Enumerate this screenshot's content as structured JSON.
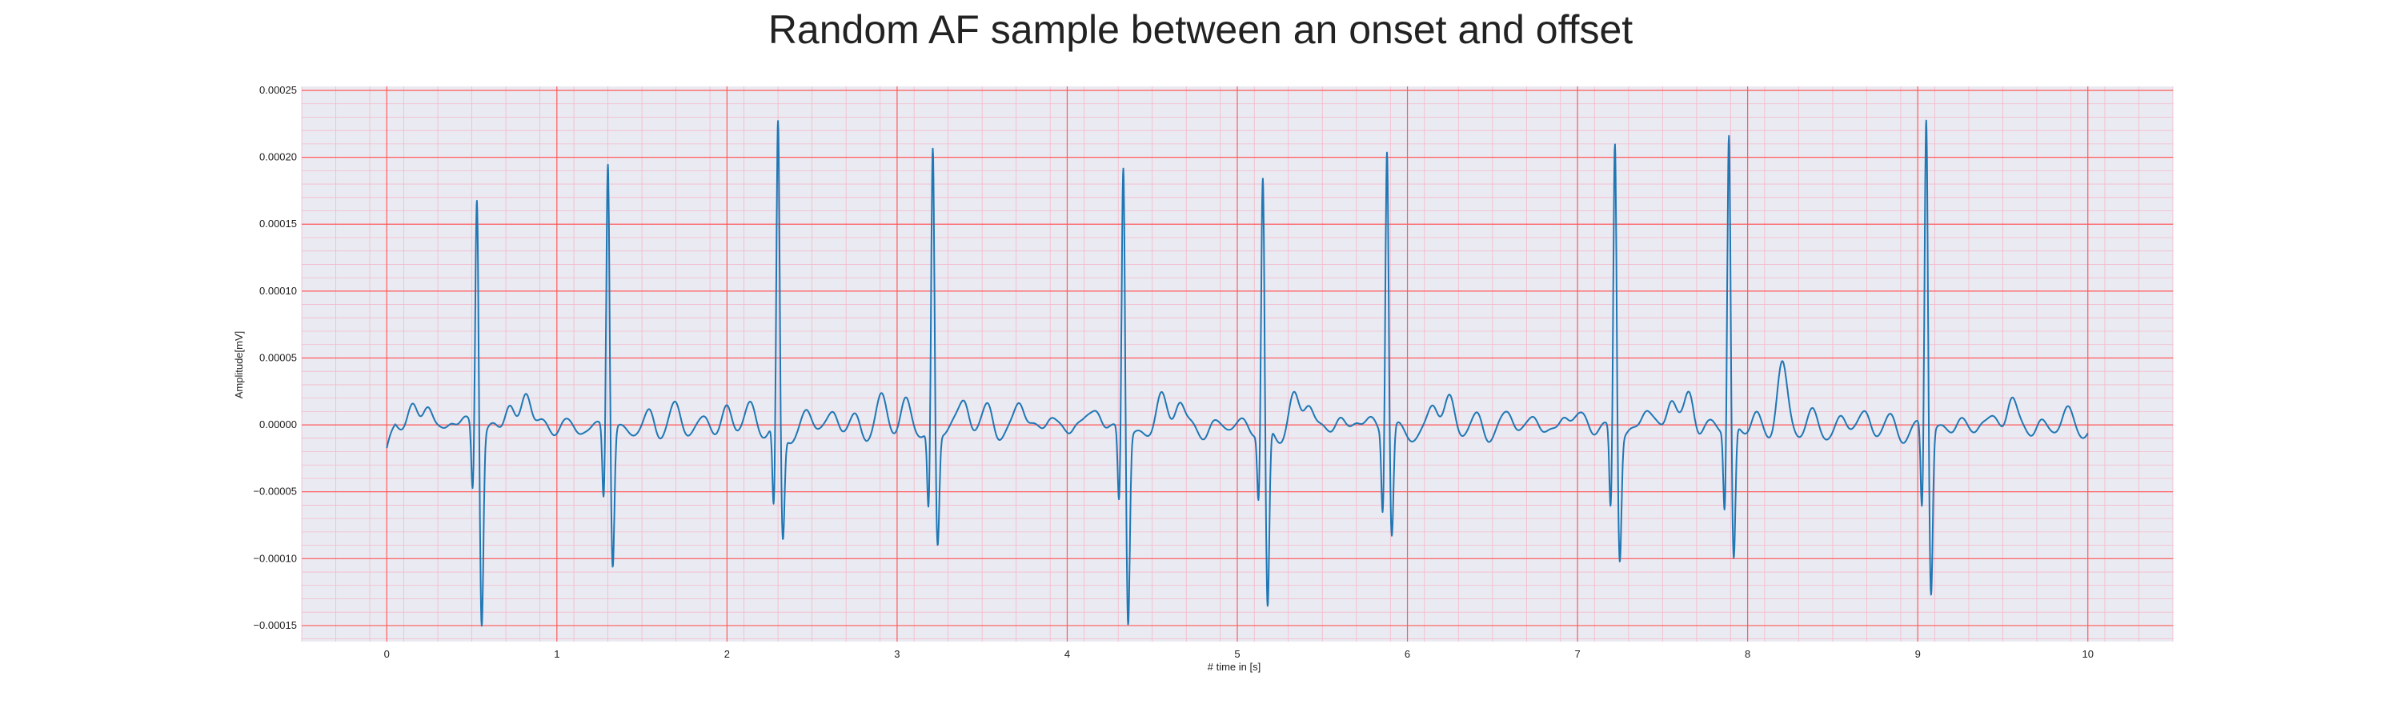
{
  "chart_data": {
    "type": "line",
    "title": "Random AF sample between an onset and offset",
    "xlabel": "# time in [s]",
    "ylabel": "Amplitude[mV]",
    "xlim": [
      -0.5,
      10.5
    ],
    "ylim": [
      -0.000162,
      0.000253
    ],
    "xticks": [
      0,
      1,
      2,
      3,
      4,
      5,
      6,
      7,
      8,
      9,
      10
    ],
    "xtick_labels": [
      "0",
      "1",
      "2",
      "3",
      "4",
      "5",
      "6",
      "7",
      "8",
      "9",
      "10"
    ],
    "yticks": [
      -0.00015,
      -0.0001,
      -5e-05,
      0,
      5e-05,
      0.0001,
      0.00015,
      0.0002,
      0.00025
    ],
    "ytick_labels": [
      "−0.00015",
      "−0.00010",
      "−0.00005",
      "0.00000",
      "0.00005",
      "0.00010",
      "0.00015",
      "0.00020",
      "0.00025"
    ],
    "grid": true,
    "minor_grid": true,
    "colors": {
      "background": "#eaeaf2",
      "major_grid": "#ff5a5a",
      "minor_grid": "#f3b9c9",
      "line": "#1f77b4"
    },
    "r_peaks": [
      {
        "t": 0.53,
        "peak": 0.000178,
        "trough": -0.000143
      },
      {
        "t": 1.3,
        "peak": 0.000201,
        "trough": -0.000104
      },
      {
        "t": 2.3,
        "peak": 0.000228,
        "trough": -8.2e-05
      },
      {
        "t": 3.21,
        "peak": 0.000213,
        "trough": -8.5e-05
      },
      {
        "t": 4.33,
        "peak": 0.000202,
        "trough": -0.000142
      },
      {
        "t": 5.15,
        "peak": 0.000189,
        "trough": -0.000137
      },
      {
        "t": 5.88,
        "peak": 0.000215,
        "trough": -8.1e-05
      },
      {
        "t": 7.22,
        "peak": 0.000221,
        "trough": -9.2e-05
      },
      {
        "t": 7.89,
        "peak": 0.000221,
        "trough": -0.000101
      },
      {
        "t": 9.05,
        "peak": 0.000234,
        "trough": -0.000124
      }
    ],
    "baseline_waves": [
      {
        "t": 0.15,
        "a": 1.6e-05
      },
      {
        "t": 0.24,
        "a": 2.1e-05
      },
      {
        "t": 0.38,
        "a": 1.3e-05
      },
      {
        "t": 0.72,
        "a": 2.4e-05
      },
      {
        "t": 0.82,
        "a": 2.9e-05
      },
      {
        "t": 1.03,
        "a": 6e-06
      },
      {
        "t": 1.16,
        "a": 8e-06
      },
      {
        "t": 1.55,
        "a": 1.6e-05
      },
      {
        "t": 1.7,
        "a": 1.2e-05
      },
      {
        "t": 1.88,
        "a": 9e-06
      },
      {
        "t": 2.0,
        "a": 1.9e-05
      },
      {
        "t": 2.14,
        "a": 1.3e-05
      },
      {
        "t": 2.47,
        "a": 1e-05
      },
      {
        "t": 2.63,
        "a": 1.3e-05
      },
      {
        "t": 2.76,
        "a": 1.1e-05
      },
      {
        "t": 2.91,
        "a": 1.8e-05
      },
      {
        "t": 3.05,
        "a": 2e-05
      },
      {
        "t": 3.4,
        "a": 2.2e-05
      },
      {
        "t": 3.54,
        "a": 1.8e-05
      },
      {
        "t": 3.72,
        "a": 1.9e-05
      },
      {
        "t": 3.9,
        "a": 1.2e-05
      },
      {
        "t": 4.05,
        "a": 1.2e-05
      },
      {
        "t": 4.18,
        "a": 1.4e-05
      },
      {
        "t": 4.55,
        "a": 2e-05
      },
      {
        "t": 4.66,
        "a": 2.6e-05
      },
      {
        "t": 4.85,
        "a": 8e-06
      },
      {
        "t": 5.04,
        "a": 4e-06
      },
      {
        "t": 5.33,
        "a": 2e-05
      },
      {
        "t": 5.42,
        "a": 2.1e-05
      },
      {
        "t": 5.6,
        "a": 1.1e-05
      },
      {
        "t": 5.7,
        "a": 1.1e-05
      },
      {
        "t": 6.15,
        "a": 1.8e-05
      },
      {
        "t": 6.25,
        "a": 2.1e-05
      },
      {
        "t": 6.42,
        "a": 1.1e-05
      },
      {
        "t": 6.6,
        "a": 9e-06
      },
      {
        "t": 6.75,
        "a": 1e-05
      },
      {
        "t": 6.92,
        "a": 1.6e-05
      },
      {
        "t": 7.05,
        "a": 8e-06
      },
      {
        "t": 7.4,
        "a": 1.3e-05
      },
      {
        "t": 7.55,
        "a": 2.6e-05
      },
      {
        "t": 7.66,
        "a": 3.3e-05
      },
      {
        "t": 8.05,
        "a": 1.3e-05
      },
      {
        "t": 8.2,
        "a": 4.4e-05
      },
      {
        "t": 8.38,
        "a": 1.1e-05
      },
      {
        "t": 8.55,
        "a": 1e-05
      },
      {
        "t": 8.7,
        "a": 9e-06
      },
      {
        "t": 8.85,
        "a": 8e-06
      },
      {
        "t": 9.25,
        "a": 9e-06
      },
      {
        "t": 9.37,
        "a": 1.1e-05
      },
      {
        "t": 9.55,
        "a": 2.6e-05
      },
      {
        "t": 9.72,
        "a": 1e-05
      },
      {
        "t": 9.88,
        "a": 1e-05
      }
    ]
  }
}
